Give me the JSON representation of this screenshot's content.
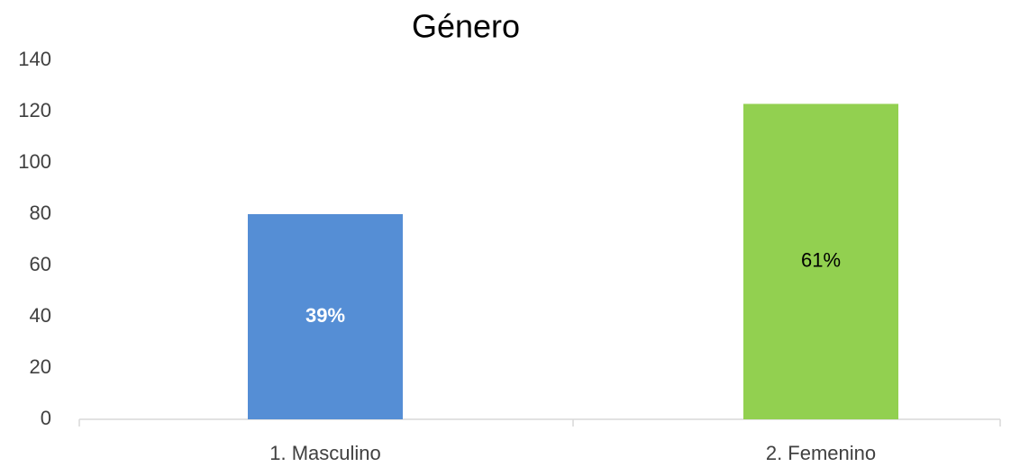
{
  "chart_data": {
    "type": "bar",
    "title": "Género",
    "categories": [
      "1. Masculino",
      "2. Femenino"
    ],
    "values": [
      80,
      123
    ],
    "percent_labels": [
      "39%",
      "61%"
    ],
    "colors": [
      "#558ed5",
      "#92d050"
    ],
    "ylim": [
      0,
      140
    ],
    "yticks": [
      0,
      20,
      40,
      60,
      80,
      100,
      120,
      140
    ],
    "grid": false
  }
}
